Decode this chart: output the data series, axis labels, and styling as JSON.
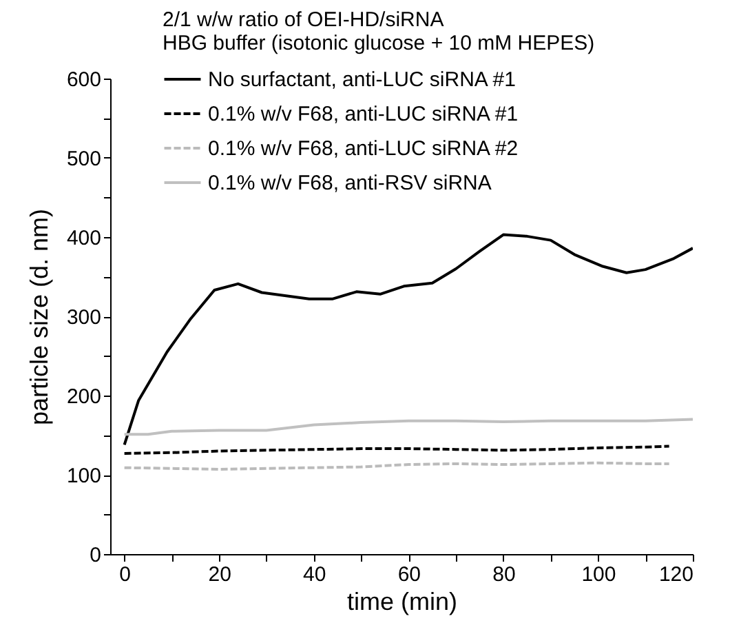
{
  "chart_data": {
    "type": "line",
    "xlabel": "time (min)",
    "ylabel": "particle size (d. nm)",
    "legend_title": "2/1 w/w ratio of OEI-HD/siRNA",
    "annotations": [
      "HBG buffer (isotonic glucose + 10 mM HEPES)"
    ],
    "xlim": [
      -3,
      120
    ],
    "xticks": [
      0,
      {
        "value": 10,
        "label": null
      },
      20,
      {
        "value": 30,
        "label": null
      },
      40,
      {
        "value": 50,
        "label": null
      },
      60,
      {
        "value": 70,
        "label": null
      },
      80,
      {
        "value": 90,
        "label": null
      },
      100,
      {
        "value": 110,
        "label": null
      },
      120
    ],
    "ylim": [
      0,
      600
    ],
    "yticks": [
      0,
      {
        "value": 50,
        "label": null
      },
      100,
      {
        "value": 150,
        "label": null
      },
      200,
      {
        "value": 250,
        "label": null
      },
      300,
      {
        "value": 350,
        "label": null
      },
      400,
      {
        "value": 450,
        "label": null
      },
      500,
      {
        "value": 550,
        "label": null
      },
      600
    ],
    "grid": false,
    "legend": "top",
    "marker": "none",
    "series": [
      {
        "name": "No surfactant, anti-LUC siRNA #1",
        "color": "#000000",
        "line_style": "solid",
        "x": [
          0,
          3,
          9,
          14,
          19,
          24,
          29,
          39,
          44,
          49,
          54,
          59,
          65,
          70,
          75,
          80,
          85,
          90,
          95,
          101,
          106,
          110,
          116,
          120
        ],
        "values": [
          138,
          194,
          255,
          297,
          333,
          341,
          330,
          322,
          322,
          331,
          328,
          338,
          342,
          360,
          382,
          403,
          401,
          396,
          378,
          363,
          355,
          359,
          373,
          386
        ]
      },
      {
        "name": "0.1% w/v F68, anti-LUC siRNA #1",
        "color": "#000000",
        "line_style": "dashed",
        "x": [
          0,
          10,
          20,
          30,
          40,
          50,
          60,
          70,
          80,
          90,
          100,
          110,
          115
        ],
        "values": [
          127,
          128,
          130,
          131,
          132,
          133,
          133,
          132,
          131,
          132,
          134,
          135,
          136
        ]
      },
      {
        "name": "0.1% w/v F68, anti-LUC siRNA #2",
        "color": "#bbbbbb",
        "line_style": "dashed",
        "x": [
          0,
          10,
          20,
          30,
          40,
          50,
          60,
          70,
          80,
          90,
          100,
          110,
          115
        ],
        "values": [
          109,
          108,
          107,
          108,
          109,
          110,
          113,
          114,
          113,
          114,
          115,
          114,
          114
        ]
      },
      {
        "name": "0.1% w/v F68, anti-RSV siRNA",
        "color": "#c0c0c0",
        "line_style": "solid",
        "x": [
          0,
          5,
          10,
          20,
          30,
          40,
          50,
          60,
          70,
          80,
          90,
          100,
          110,
          120
        ],
        "values": [
          151,
          151,
          155,
          156,
          156,
          163,
          166,
          168,
          168,
          167,
          168,
          168,
          168,
          170
        ]
      }
    ]
  }
}
